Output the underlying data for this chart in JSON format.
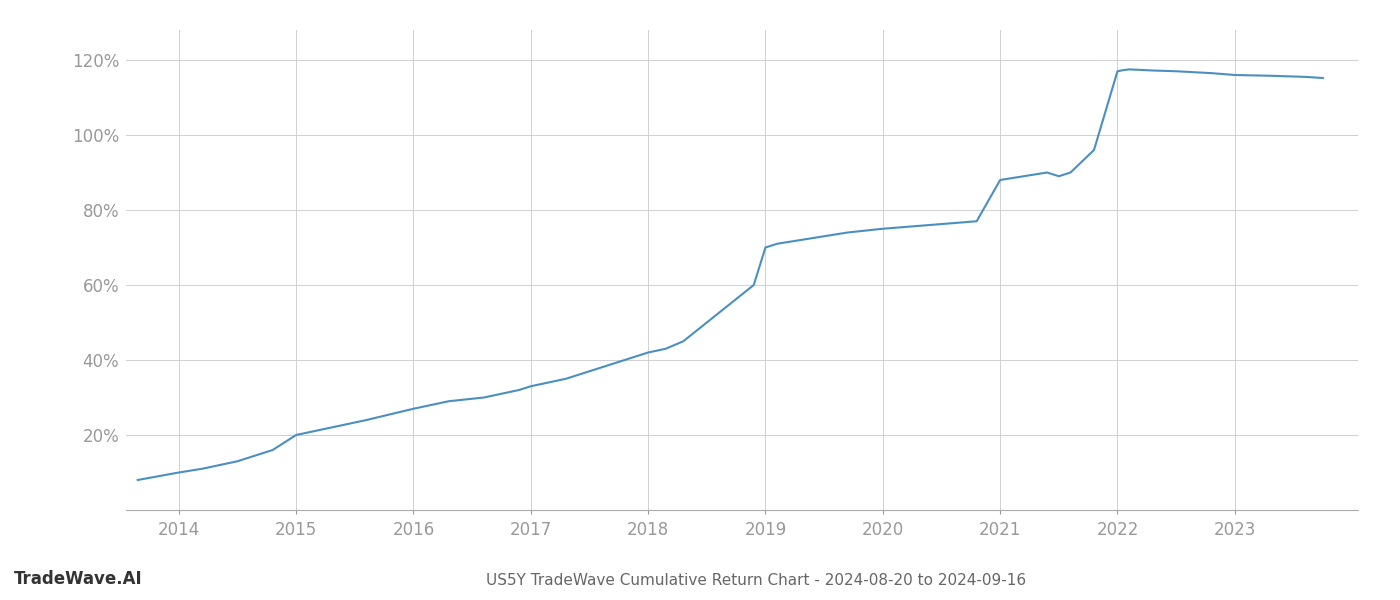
{
  "x_years": [
    2013.65,
    2014.0,
    2014.2,
    2014.5,
    2014.8,
    2015.0,
    2015.3,
    2015.6,
    2016.0,
    2016.3,
    2016.6,
    2016.9,
    2017.0,
    2017.3,
    2017.6,
    2018.0,
    2018.15,
    2018.3,
    2018.5,
    2018.7,
    2018.9,
    2019.0,
    2019.1,
    2019.3,
    2019.5,
    2019.7,
    2020.0,
    2020.2,
    2020.4,
    2020.6,
    2020.8,
    2021.0,
    2021.2,
    2021.4,
    2021.5,
    2021.6,
    2021.8,
    2022.0,
    2022.05,
    2022.1,
    2022.3,
    2022.5,
    2022.8,
    2023.0,
    2023.3,
    2023.6,
    2023.75
  ],
  "y_values": [
    8,
    10,
    11,
    13,
    16,
    20,
    22,
    24,
    27,
    29,
    30,
    32,
    33,
    35,
    38,
    42,
    43,
    45,
    50,
    55,
    60,
    70,
    71,
    72,
    73,
    74,
    75,
    75.5,
    76,
    76.5,
    77,
    88,
    89,
    90,
    89,
    90,
    96,
    117,
    117.3,
    117.5,
    117.2,
    117.0,
    116.5,
    116.0,
    115.8,
    115.5,
    115.2
  ],
  "line_color": "#4a8fc0",
  "line_width": 1.5,
  "bg_color": "#ffffff",
  "grid_color": "#d0d0d0",
  "title": "US5Y TradeWave Cumulative Return Chart - 2024-08-20 to 2024-09-16",
  "watermark": "TradeWave.AI",
  "yticks": [
    20,
    40,
    60,
    80,
    100,
    120
  ],
  "xticks": [
    2014,
    2015,
    2016,
    2017,
    2018,
    2019,
    2020,
    2021,
    2022,
    2023
  ],
  "ylim": [
    0,
    128
  ],
  "xlim": [
    2013.55,
    2024.05
  ],
  "tick_color": "#999999",
  "tick_fontsize": 12,
  "title_fontsize": 11,
  "watermark_fontsize": 12
}
